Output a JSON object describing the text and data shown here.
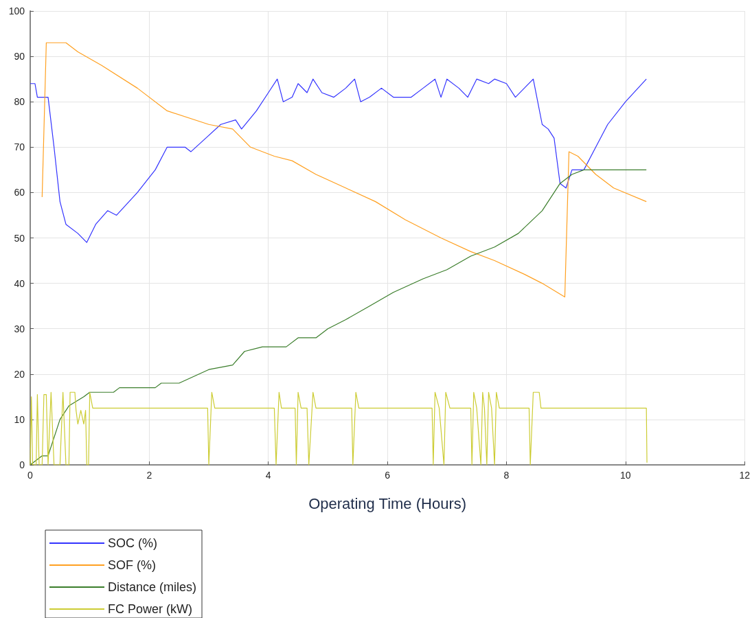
{
  "chart_data": {
    "type": "line",
    "xlabel": "Operating Time (Hours)",
    "xlim": [
      0,
      12
    ],
    "xticks": [
      0,
      2,
      4,
      6,
      8,
      10,
      12
    ],
    "ylim": [
      0,
      100
    ],
    "yticks": [
      0,
      10,
      20,
      30,
      40,
      50,
      60,
      70,
      80,
      90,
      100
    ],
    "grid": true,
    "legend": "bottom left",
    "marker": "none",
    "line_style": "solid",
    "series": [
      {
        "name": "SOC (%)",
        "color": "#3333ff",
        "x": [
          0,
          0.08,
          0.12,
          0.3,
          0.4,
          0.5,
          0.6,
          0.8,
          0.95,
          1.1,
          1.3,
          1.45,
          1.8,
          2.1,
          2.3,
          2.6,
          2.7,
          2.95,
          3.2,
          3.45,
          3.55,
          3.8,
          4.0,
          4.15,
          4.25,
          4.4,
          4.5,
          4.65,
          4.75,
          4.9,
          5.1,
          5.3,
          5.45,
          5.55,
          5.7,
          5.9,
          6.1,
          6.4,
          6.6,
          6.8,
          6.9,
          7.0,
          7.2,
          7.35,
          7.5,
          7.7,
          7.8,
          8.0,
          8.15,
          8.3,
          8.45,
          8.6,
          8.7,
          8.8,
          8.9,
          9.0,
          9.1,
          9.3,
          9.5,
          9.7,
          10.0,
          10.35
        ],
        "values": [
          84,
          84,
          81,
          81,
          70,
          58,
          53,
          51,
          49,
          53,
          56,
          55,
          60,
          65,
          70,
          70,
          69,
          72,
          75,
          76,
          74,
          78,
          82,
          85,
          80,
          81,
          84,
          82,
          85,
          82,
          81,
          83,
          85,
          80,
          81,
          83,
          81,
          81,
          83,
          85,
          81,
          85,
          83,
          81,
          85,
          84,
          85,
          84,
          81,
          83,
          85,
          75,
          74,
          72,
          62,
          61,
          65,
          65,
          70,
          75,
          80,
          85
        ]
      },
      {
        "name": "SOF (%)",
        "color": "#ffa020",
        "x": [
          0.2,
          0.27,
          0.6,
          0.8,
          1.2,
          1.8,
          2.3,
          3.0,
          3.4,
          3.7,
          4.1,
          4.4,
          4.8,
          5.3,
          5.8,
          6.3,
          6.9,
          7.4,
          7.8,
          8.3,
          8.6,
          8.98,
          9.05,
          9.2,
          9.5,
          9.8,
          10.35
        ],
        "values": [
          59,
          93,
          93,
          91,
          88,
          83,
          78,
          75,
          74,
          70,
          68,
          67,
          64,
          61,
          58,
          54,
          50,
          47,
          45,
          42,
          40,
          37,
          69,
          68,
          64,
          61,
          58
        ]
      },
      {
        "name": "Distance (miles)",
        "color": "#3a7d2a",
        "x": [
          0,
          0.2,
          0.3,
          0.5,
          0.65,
          0.9,
          1.0,
          1.4,
          1.5,
          2.1,
          2.2,
          2.5,
          3.0,
          3.4,
          3.6,
          3.9,
          4.3,
          4.5,
          4.8,
          5.0,
          5.3,
          5.7,
          6.1,
          6.6,
          7.0,
          7.4,
          7.8,
          8.2,
          8.6,
          8.9,
          9.1,
          9.3,
          10.35
        ],
        "values": [
          0,
          2,
          2,
          10,
          13,
          15,
          16,
          16,
          17,
          17,
          18,
          18,
          21,
          22,
          25,
          26,
          26,
          28,
          28,
          30,
          32,
          35,
          38,
          41,
          43,
          46,
          48,
          51,
          56,
          62,
          64,
          65,
          65
        ]
      },
      {
        "name": "FC Power (kW)",
        "color": "#cccc33",
        "x": [
          0,
          0.02,
          0.04,
          0.1,
          0.12,
          0.15,
          0.2,
          0.23,
          0.27,
          0.3,
          0.35,
          0.4,
          0.5,
          0.55,
          0.6,
          0.65,
          0.67,
          0.75,
          0.77,
          0.8,
          0.85,
          0.9,
          0.93,
          0.95,
          0.98,
          1.0,
          1.05,
          2.98,
          3.0,
          3.05,
          3.1,
          4.1,
          4.13,
          4.18,
          4.22,
          4.45,
          4.47,
          4.5,
          4.55,
          4.65,
          4.68,
          4.75,
          4.8,
          5.4,
          5.42,
          5.47,
          5.52,
          6.75,
          6.77,
          6.8,
          6.87,
          6.95,
          6.98,
          7.05,
          7.4,
          7.42,
          7.45,
          7.5,
          7.57,
          7.6,
          7.63,
          7.67,
          7.7,
          7.75,
          7.8,
          7.83,
          7.88,
          8.38,
          8.4,
          8.45,
          8.55,
          8.58,
          8.8,
          10.35,
          10.36
        ],
        "values": [
          0,
          15,
          0,
          0,
          15.5,
          0,
          0,
          15.5,
          15.5,
          0,
          16,
          0,
          0,
          16,
          0,
          0,
          16,
          16,
          12,
          9,
          12,
          9,
          12,
          0,
          0,
          16,
          12.5,
          12.5,
          0,
          16,
          12.5,
          12.5,
          0,
          16,
          12.5,
          12.5,
          0,
          16,
          12.5,
          12.5,
          0,
          16,
          12.5,
          12.5,
          0,
          16,
          12.5,
          12.5,
          0,
          16,
          12.5,
          0,
          16,
          12.5,
          12.5,
          0,
          16,
          12.5,
          0,
          16,
          12.5,
          0,
          16,
          12.5,
          0,
          16,
          12.5,
          12.5,
          0,
          16,
          16,
          12.5,
          12.5,
          12.5,
          0.5
        ]
      }
    ]
  }
}
